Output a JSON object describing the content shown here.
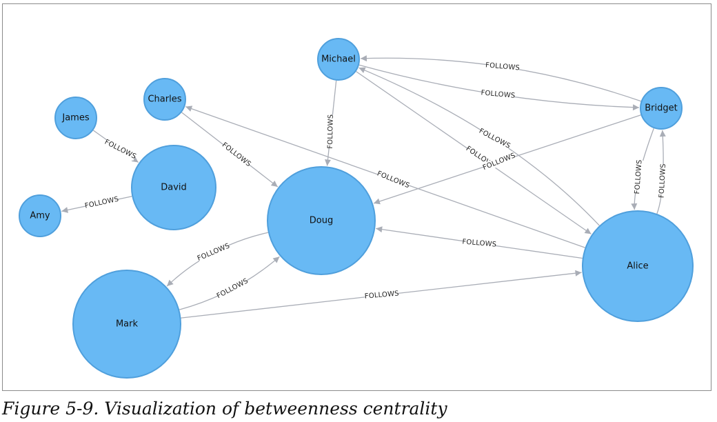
{
  "diagram": {
    "type": "directed-graph",
    "node_color": "#68b9f4",
    "node_border_color": "#4f9fdc",
    "edge_color": "#a9adb6",
    "nodes": [
      {
        "id": "michael",
        "label": "Michael"
      },
      {
        "id": "charles",
        "label": "Charles"
      },
      {
        "id": "james",
        "label": "James"
      },
      {
        "id": "bridget",
        "label": "Bridget"
      },
      {
        "id": "david",
        "label": "David"
      },
      {
        "id": "amy",
        "label": "Amy"
      },
      {
        "id": "doug",
        "label": "Doug"
      },
      {
        "id": "alice",
        "label": "Alice"
      },
      {
        "id": "mark",
        "label": "Mark"
      }
    ],
    "edges": [
      {
        "from": "james",
        "to": "david",
        "label": "FOLLOWS"
      },
      {
        "from": "david",
        "to": "amy",
        "label": "FOLLOWS"
      },
      {
        "from": "charles",
        "to": "doug",
        "label": "FOLLOWS"
      },
      {
        "from": "michael",
        "to": "doug",
        "label": "FOLLOWS"
      },
      {
        "from": "bridget",
        "to": "michael",
        "label": "FOLLOWS"
      },
      {
        "from": "michael",
        "to": "bridget",
        "label": "FOLLOWS"
      },
      {
        "from": "alice",
        "to": "michael",
        "label": "FOLLOWS"
      },
      {
        "from": "michael",
        "to": "alice",
        "label": "FOLLOWS"
      },
      {
        "from": "alice",
        "to": "charles",
        "label": "FOLLOWS"
      },
      {
        "from": "bridget",
        "to": "doug",
        "label": "FOLLOWS"
      },
      {
        "from": "bridget",
        "to": "alice",
        "label": "FOLLOWS"
      },
      {
        "from": "alice",
        "to": "bridget",
        "label": "FOLLOWS"
      },
      {
        "from": "alice",
        "to": "doug",
        "label": "FOLLOWS"
      },
      {
        "from": "doug",
        "to": "mark",
        "label": "FOLLOWS"
      },
      {
        "from": "mark",
        "to": "doug",
        "label": "FOLLOWS"
      },
      {
        "from": "mark",
        "to": "alice",
        "label": "FOLLOWS"
      }
    ]
  },
  "caption": "Figure 5-9. Visualization of betweenness centrality"
}
